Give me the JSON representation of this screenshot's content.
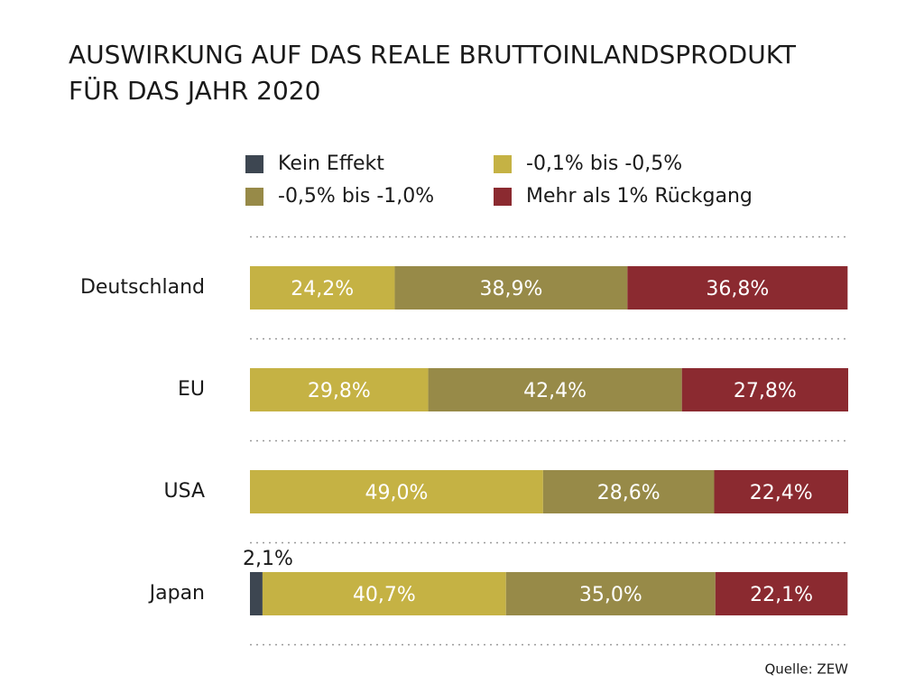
{
  "chart_data": {
    "type": "stacked-bar-horizontal",
    "title": "AUSWIRKUNG AUF DAS REALE BRUTTOINLANDSPRODUKT",
    "subtitle": "FÜR DAS JAHR 2020",
    "categories": [
      "Deutschland",
      "EU",
      "USA",
      "Japan"
    ],
    "xlim": [
      0,
      100
    ],
    "series": [
      {
        "name": "Kein Effekt",
        "color": "#3d4651",
        "values": [
          0,
          0,
          0,
          2.1
        ],
        "value_labels": [
          null,
          null,
          null,
          "2,1%"
        ]
      },
      {
        "name": "-0,1% bis -0,5%",
        "color": "#c5b244",
        "values": [
          24.2,
          29.8,
          49.0,
          40.7
        ],
        "value_labels": [
          "24,2%",
          "29,8%",
          "49,0%",
          "40,7%"
        ]
      },
      {
        "name": "-0,5% bis -1,0%",
        "color": "#978a48",
        "values": [
          38.9,
          42.4,
          28.6,
          35.0
        ],
        "value_labels": [
          "38,9%",
          "42,4%",
          "28,6%",
          "35,0%"
        ]
      },
      {
        "name": "Mehr als 1% Rückgang",
        "color": "#8b2a30",
        "values": [
          36.8,
          27.8,
          22.4,
          22.1
        ],
        "value_labels": [
          "36,8%",
          "27,8%",
          "22,4%",
          "22,1%"
        ]
      }
    ],
    "source": "Quelle: ZEW"
  }
}
